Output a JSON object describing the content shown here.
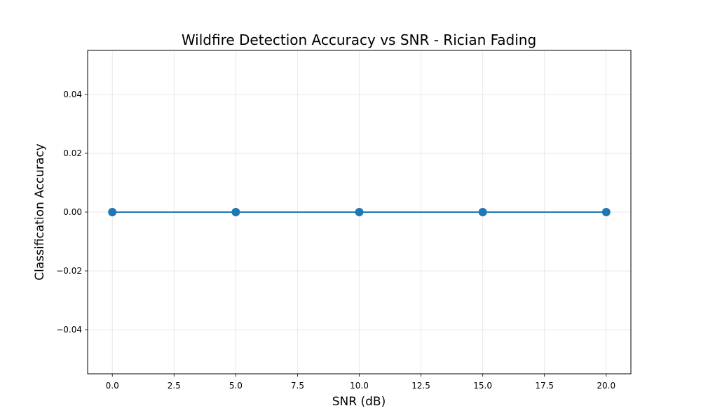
{
  "chart_data": {
    "type": "line",
    "title": "Wildfire Detection Accuracy vs SNR - Rician Fading",
    "xlabel": "SNR (dB)",
    "ylabel": "Classification Accuracy",
    "xlim": [
      -1,
      21
    ],
    "ylim": [
      -0.055,
      0.055
    ],
    "xticks": [
      0.0,
      2.5,
      5.0,
      7.5,
      10.0,
      12.5,
      15.0,
      17.5,
      20.0
    ],
    "xtick_labels": [
      "0.0",
      "2.5",
      "5.0",
      "7.5",
      "10.0",
      "12.5",
      "15.0",
      "17.5",
      "20.0"
    ],
    "yticks": [
      -0.04,
      -0.02,
      0.0,
      0.02,
      0.04
    ],
    "ytick_labels": [
      "−0.04",
      "−0.02",
      "0.00",
      "0.02",
      "0.04"
    ],
    "grid": true,
    "series": [
      {
        "x": [
          0,
          5,
          10,
          15,
          20
        ],
        "values": [
          0.0,
          0.0,
          0.0,
          0.0,
          0.0
        ],
        "color": "#1f77b4",
        "marker": "circle"
      }
    ]
  }
}
